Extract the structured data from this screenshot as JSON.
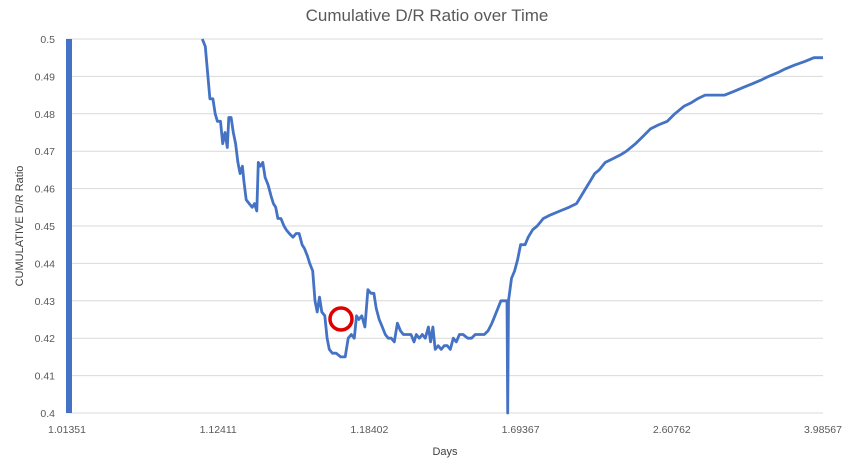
{
  "chart_data": {
    "type": "line",
    "title": "Cumulative D/R Ratio over Time",
    "xlabel": "Days",
    "ylabel": "CUMULATIVE D/R Ratio",
    "ylim": [
      0.4,
      0.5
    ],
    "yticks": [
      "0.4",
      "0.41",
      "0.42",
      "0.43",
      "0.44",
      "0.45",
      "0.46",
      "0.47",
      "0.48",
      "0.49",
      "0.5"
    ],
    "xticks": [
      "1.01351",
      "1.12411",
      "1.18402",
      "1.69367",
      "2.60762",
      "3.98567"
    ],
    "grid": true,
    "series": [
      {
        "color": "#4472c4",
        "points": [
          [
            0.0,
            0.5
          ],
          [
            0.002,
            0.4
          ],
          [
            0.179,
            0.5
          ],
          [
            0.183,
            0.498
          ],
          [
            0.186,
            0.491
          ],
          [
            0.189,
            0.484
          ],
          [
            0.193,
            0.484
          ],
          [
            0.196,
            0.48
          ],
          [
            0.199,
            0.478
          ],
          [
            0.203,
            0.478
          ],
          [
            0.206,
            0.472
          ],
          [
            0.209,
            0.475
          ],
          [
            0.212,
            0.471
          ],
          [
            0.214,
            0.479
          ],
          [
            0.217,
            0.479
          ],
          [
            0.22,
            0.475
          ],
          [
            0.223,
            0.472
          ],
          [
            0.226,
            0.467
          ],
          [
            0.229,
            0.464
          ],
          [
            0.232,
            0.466
          ],
          [
            0.234,
            0.462
          ],
          [
            0.237,
            0.457
          ],
          [
            0.241,
            0.456
          ],
          [
            0.245,
            0.455
          ],
          [
            0.248,
            0.456
          ],
          [
            0.251,
            0.454
          ],
          [
            0.253,
            0.467
          ],
          [
            0.256,
            0.466
          ],
          [
            0.259,
            0.467
          ],
          [
            0.262,
            0.463
          ],
          [
            0.266,
            0.461
          ],
          [
            0.27,
            0.458
          ],
          [
            0.273,
            0.456
          ],
          [
            0.276,
            0.455
          ],
          [
            0.279,
            0.452
          ],
          [
            0.283,
            0.452
          ],
          [
            0.287,
            0.45
          ],
          [
            0.29,
            0.449
          ],
          [
            0.294,
            0.448
          ],
          [
            0.299,
            0.447
          ],
          [
            0.303,
            0.448
          ],
          [
            0.307,
            0.448
          ],
          [
            0.311,
            0.445
          ],
          [
            0.314,
            0.444
          ],
          [
            0.318,
            0.442
          ],
          [
            0.321,
            0.44
          ],
          [
            0.325,
            0.438
          ],
          [
            0.328,
            0.43
          ],
          [
            0.331,
            0.427
          ],
          [
            0.334,
            0.431
          ],
          [
            0.337,
            0.427
          ],
          [
            0.341,
            0.426
          ],
          [
            0.344,
            0.42
          ],
          [
            0.347,
            0.417
          ],
          [
            0.351,
            0.416
          ],
          [
            0.356,
            0.416
          ],
          [
            0.362,
            0.415
          ],
          [
            0.368,
            0.415
          ],
          [
            0.372,
            0.42
          ],
          [
            0.376,
            0.421
          ],
          [
            0.38,
            0.42
          ],
          [
            0.383,
            0.426
          ],
          [
            0.386,
            0.425
          ],
          [
            0.39,
            0.426
          ],
          [
            0.394,
            0.423
          ],
          [
            0.398,
            0.433
          ],
          [
            0.402,
            0.432
          ],
          [
            0.406,
            0.432
          ],
          [
            0.409,
            0.428
          ],
          [
            0.413,
            0.425
          ],
          [
            0.417,
            0.423
          ],
          [
            0.421,
            0.421
          ],
          [
            0.425,
            0.42
          ],
          [
            0.429,
            0.42
          ],
          [
            0.433,
            0.419
          ],
          [
            0.437,
            0.424
          ],
          [
            0.441,
            0.422
          ],
          [
            0.445,
            0.421
          ],
          [
            0.45,
            0.421
          ],
          [
            0.455,
            0.421
          ],
          [
            0.459,
            0.419
          ],
          [
            0.462,
            0.421
          ],
          [
            0.466,
            0.42
          ],
          [
            0.47,
            0.421
          ],
          [
            0.474,
            0.42
          ],
          [
            0.478,
            0.423
          ],
          [
            0.481,
            0.419
          ],
          [
            0.484,
            0.423
          ],
          [
            0.487,
            0.417
          ],
          [
            0.491,
            0.418
          ],
          [
            0.495,
            0.417
          ],
          [
            0.499,
            0.418
          ],
          [
            0.503,
            0.418
          ],
          [
            0.507,
            0.417
          ],
          [
            0.511,
            0.42
          ],
          [
            0.515,
            0.419
          ],
          [
            0.519,
            0.421
          ],
          [
            0.524,
            0.421
          ],
          [
            0.53,
            0.42
          ],
          [
            0.535,
            0.42
          ],
          [
            0.54,
            0.421
          ],
          [
            0.546,
            0.421
          ],
          [
            0.552,
            0.421
          ],
          [
            0.557,
            0.422
          ],
          [
            0.562,
            0.424
          ],
          [
            0.566,
            0.426
          ],
          [
            0.57,
            0.428
          ],
          [
            0.574,
            0.43
          ],
          [
            0.578,
            0.43
          ],
          [
            0.582,
            0.43
          ],
          [
            0.583,
            0.4
          ],
          [
            0.584,
            0.43
          ],
          [
            0.588,
            0.436
          ],
          [
            0.592,
            0.438
          ],
          [
            0.596,
            0.441
          ],
          [
            0.6,
            0.445
          ],
          [
            0.606,
            0.445
          ],
          [
            0.61,
            0.447
          ],
          [
            0.616,
            0.449
          ],
          [
            0.622,
            0.45
          ],
          [
            0.63,
            0.452
          ],
          [
            0.64,
            0.453
          ],
          [
            0.652,
            0.454
          ],
          [
            0.664,
            0.455
          ],
          [
            0.674,
            0.456
          ],
          [
            0.68,
            0.458
          ],
          [
            0.686,
            0.46
          ],
          [
            0.692,
            0.462
          ],
          [
            0.698,
            0.464
          ],
          [
            0.704,
            0.465
          ],
          [
            0.712,
            0.467
          ],
          [
            0.722,
            0.468
          ],
          [
            0.732,
            0.469
          ],
          [
            0.74,
            0.47
          ],
          [
            0.752,
            0.472
          ],
          [
            0.762,
            0.474
          ],
          [
            0.772,
            0.476
          ],
          [
            0.782,
            0.477
          ],
          [
            0.794,
            0.478
          ],
          [
            0.804,
            0.48
          ],
          [
            0.816,
            0.482
          ],
          [
            0.826,
            0.483
          ],
          [
            0.834,
            0.484
          ],
          [
            0.844,
            0.485
          ],
          [
            0.856,
            0.485
          ],
          [
            0.87,
            0.485
          ],
          [
            0.882,
            0.486
          ],
          [
            0.894,
            0.487
          ],
          [
            0.906,
            0.488
          ],
          [
            0.918,
            0.489
          ],
          [
            0.928,
            0.49
          ],
          [
            0.94,
            0.491
          ],
          [
            0.95,
            0.492
          ],
          [
            0.962,
            0.493
          ],
          [
            0.976,
            0.494
          ],
          [
            0.988,
            0.495
          ],
          [
            1.0,
            0.495
          ]
        ]
      }
    ]
  }
}
